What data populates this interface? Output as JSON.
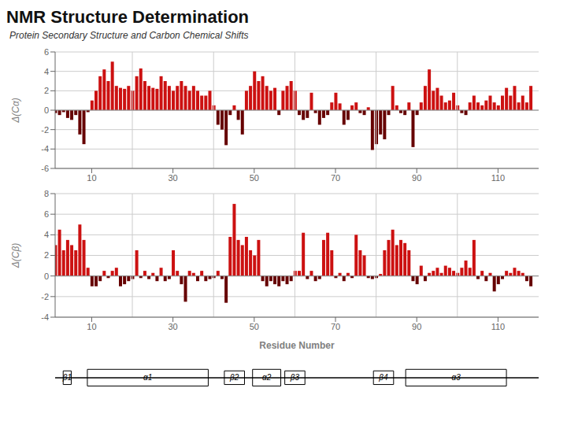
{
  "chart_data": [
    {
      "type": "bar",
      "title": "NMR Structure Determination",
      "subtitle": "Protein Secondary Structure and Carbon Chemical Shifts",
      "ylabel": "Δ(Cα)",
      "xlim": [
        1,
        120
      ],
      "xticks": [
        10,
        30,
        50,
        70,
        90,
        110
      ],
      "ylim": [
        -6,
        6
      ],
      "yticks": [
        -6,
        -4,
        -2,
        0,
        2,
        4,
        6
      ],
      "grid": true,
      "vlines": [
        20,
        40,
        60,
        80,
        100
      ],
      "x": [
        1,
        2,
        3,
        4,
        5,
        6,
        7,
        8,
        9,
        10,
        11,
        12,
        13,
        14,
        15,
        16,
        17,
        18,
        19,
        20,
        21,
        22,
        23,
        24,
        25,
        26,
        27,
        28,
        29,
        30,
        31,
        32,
        33,
        34,
        35,
        36,
        37,
        38,
        39,
        40,
        41,
        42,
        43,
        44,
        45,
        46,
        47,
        48,
        49,
        50,
        51,
        52,
        53,
        54,
        55,
        56,
        57,
        58,
        59,
        60,
        61,
        62,
        63,
        64,
        65,
        66,
        67,
        68,
        69,
        70,
        71,
        72,
        73,
        74,
        75,
        76,
        77,
        78,
        79,
        80,
        81,
        82,
        83,
        84,
        85,
        86,
        87,
        88,
        89,
        90,
        91,
        92,
        93,
        94,
        95,
        96,
        97,
        98,
        99,
        100,
        101,
        102,
        103,
        104,
        105,
        106,
        107,
        108,
        109,
        110,
        111,
        112,
        113,
        114,
        115,
        116,
        117,
        118
      ],
      "values": [
        -0.3,
        -0.5,
        -0.2,
        -0.8,
        -1.0,
        -0.5,
        -2.5,
        -3.5,
        -0.2,
        1.0,
        2.0,
        3.5,
        4.2,
        3.0,
        5.0,
        2.5,
        2.3,
        2.2,
        2.5,
        2.0,
        3.5,
        4.3,
        3.0,
        2.5,
        2.3,
        2.2,
        3.5,
        3.0,
        2.5,
        2.0,
        2.5,
        3.0,
        2.5,
        2.0,
        2.5,
        2.0,
        1.5,
        1.5,
        2.0,
        0.5,
        -1.5,
        -2.0,
        -3.6,
        -0.5,
        0.5,
        -1.0,
        -2.5,
        2.0,
        2.5,
        4.0,
        3.0,
        3.5,
        2.5,
        2.0,
        2.3,
        -0.5,
        2.0,
        2.5,
        3.0,
        2.0,
        -0.5,
        -1.0,
        -0.8,
        1.8,
        -0.3,
        -1.5,
        -0.8,
        -0.5,
        0.8,
        1.8,
        0.7,
        -1.5,
        -1.0,
        0.5,
        0.8,
        -0.3,
        -0.5,
        0.3,
        -4.1,
        -3.5,
        -2.5,
        -3.0,
        -0.5,
        2.5,
        0.5,
        -0.3,
        -0.5,
        0.8,
        -3.8,
        -0.5,
        0.8,
        2.5,
        4.2,
        2.0,
        2.3,
        1.5,
        0.8,
        1.0,
        1.8,
        0.5,
        -0.3,
        -0.5,
        0.8,
        1.5,
        0.8,
        0.5,
        1.0,
        1.5,
        0.8,
        0.5,
        1.5,
        2.3,
        1.5,
        2.5,
        0.8,
        1.5,
        0.8,
        2.5
      ],
      "colors": [
        "#660000",
        "#660000",
        "#660000",
        "#660000",
        "#660000",
        "#660000",
        "#660000",
        "#660000",
        "#660000",
        "#cc1111",
        "#cc1111",
        "#cc1111",
        "#cc1111",
        "#cc1111",
        "#cc1111",
        "#cc1111",
        "#cc1111",
        "#cc1111",
        "#cc1111",
        "#cc1111",
        "#cc1111",
        "#cc1111",
        "#cc1111",
        "#cc1111",
        "#cc1111",
        "#cc1111",
        "#cc1111",
        "#cc1111",
        "#cc1111",
        "#cc1111",
        "#cc1111",
        "#cc1111",
        "#cc1111",
        "#cc1111",
        "#cc1111",
        "#cc1111",
        "#cc1111",
        "#cc1111",
        "#cc1111",
        "#cc1111",
        "#660000",
        "#660000",
        "#660000",
        "#660000",
        "#cc1111",
        "#660000",
        "#660000",
        "#cc1111",
        "#cc1111",
        "#cc1111",
        "#cc1111",
        "#cc1111",
        "#cc1111",
        "#cc1111",
        "#cc1111",
        "#660000",
        "#cc1111",
        "#cc1111",
        "#cc1111",
        "#cc1111",
        "#660000",
        "#660000",
        "#660000",
        "#cc1111",
        "#660000",
        "#660000",
        "#660000",
        "#660000",
        "#cc1111",
        "#cc1111",
        "#cc1111",
        "#660000",
        "#660000",
        "#cc1111",
        "#cc1111",
        "#660000",
        "#660000",
        "#cc1111",
        "#660000",
        "#660000",
        "#660000",
        "#660000",
        "#660000",
        "#cc1111",
        "#cc1111",
        "#660000",
        "#660000",
        "#cc1111",
        "#660000",
        "#660000",
        "#cc1111",
        "#cc1111",
        "#cc1111",
        "#cc1111",
        "#cc1111",
        "#cc1111",
        "#cc1111",
        "#cc1111",
        "#cc1111",
        "#cc1111",
        "#660000",
        "#660000",
        "#cc1111",
        "#cc1111",
        "#cc1111",
        "#cc1111",
        "#cc1111",
        "#cc1111",
        "#cc1111",
        "#cc1111",
        "#cc1111",
        "#cc1111",
        "#cc1111",
        "#cc1111",
        "#cc1111",
        "#cc1111",
        "#cc1111",
        "#cc1111"
      ]
    },
    {
      "type": "bar",
      "ylabel": "Δ(Cβ)",
      "xlabel": "Residue Number",
      "xlim": [
        1,
        120
      ],
      "xticks": [
        10,
        30,
        50,
        70,
        90,
        110
      ],
      "ylim": [
        -4,
        8
      ],
      "yticks": [
        -4,
        -2,
        0,
        2,
        4,
        6,
        8
      ],
      "grid": true,
      "vlines": [
        20,
        40,
        60,
        80,
        100
      ],
      "x": [
        1,
        2,
        3,
        4,
        5,
        6,
        7,
        8,
        9,
        10,
        11,
        12,
        13,
        14,
        15,
        16,
        17,
        18,
        19,
        20,
        21,
        22,
        23,
        24,
        25,
        26,
        27,
        28,
        29,
        30,
        31,
        32,
        33,
        34,
        35,
        36,
        37,
        38,
        39,
        40,
        41,
        42,
        43,
        44,
        45,
        46,
        47,
        48,
        49,
        50,
        51,
        52,
        53,
        54,
        55,
        56,
        57,
        58,
        59,
        60,
        61,
        62,
        63,
        64,
        65,
        66,
        67,
        68,
        69,
        70,
        71,
        72,
        73,
        74,
        75,
        76,
        77,
        78,
        79,
        80,
        81,
        82,
        83,
        84,
        85,
        86,
        87,
        88,
        89,
        90,
        91,
        92,
        93,
        94,
        95,
        96,
        97,
        98,
        99,
        100,
        101,
        102,
        103,
        104,
        105,
        106,
        107,
        108,
        109,
        110,
        111,
        112,
        113,
        114,
        115,
        116,
        117,
        118
      ],
      "values": [
        3.0,
        4.5,
        2.5,
        3.5,
        3.0,
        2.5,
        5.0,
        3.5,
        0.8,
        -1.0,
        -1.0,
        -0.5,
        0.5,
        -0.2,
        0.5,
        0.8,
        -1.0,
        -0.8,
        -0.5,
        -0.3,
        2.5,
        -0.2,
        0.5,
        -0.3,
        0.3,
        -0.5,
        0.8,
        -0.5,
        -0.3,
        2.5,
        0.5,
        -0.8,
        -2.5,
        0.5,
        0.3,
        -0.5,
        0.5,
        -0.5,
        -0.3,
        -0.2,
        0.5,
        -0.3,
        -2.6,
        3.8,
        7.0,
        3.5,
        3.0,
        3.8,
        2.5,
        2.0,
        3.5,
        -0.5,
        -1.0,
        -0.5,
        -0.8,
        -1.0,
        -0.5,
        -0.8,
        -0.5,
        0.5,
        0.5,
        4.2,
        -0.3,
        0.5,
        -0.5,
        -0.3,
        3.5,
        4.2,
        2.5,
        -0.2,
        0.3,
        -0.5,
        0.3,
        -0.2,
        4.0,
        2.5,
        2.0,
        -0.2,
        -0.3,
        -0.2,
        0.2,
        2.5,
        3.5,
        4.5,
        3.0,
        3.5,
        3.2,
        2.5,
        -0.5,
        -0.8,
        1.0,
        -0.5,
        0.3,
        0.5,
        0.8,
        0.3,
        1.0,
        0.8,
        0.5,
        0.3,
        0.8,
        1.5,
        0.8,
        3.5,
        -0.3,
        0.5,
        -0.5,
        0.3,
        -1.5,
        -0.8,
        -0.3,
        0.5,
        0.3,
        0.8,
        0.5,
        0.3,
        -0.5,
        -1.0
      ],
      "colors": [
        "#cc1111",
        "#cc1111",
        "#cc1111",
        "#cc1111",
        "#cc1111",
        "#cc1111",
        "#cc1111",
        "#cc1111",
        "#cc1111",
        "#660000",
        "#660000",
        "#660000",
        "#cc1111",
        "#660000",
        "#cc1111",
        "#cc1111",
        "#660000",
        "#660000",
        "#660000",
        "#660000",
        "#cc1111",
        "#660000",
        "#cc1111",
        "#660000",
        "#cc1111",
        "#660000",
        "#cc1111",
        "#660000",
        "#660000",
        "#cc1111",
        "#cc1111",
        "#660000",
        "#660000",
        "#cc1111",
        "#cc1111",
        "#660000",
        "#cc1111",
        "#660000",
        "#660000",
        "#660000",
        "#cc1111",
        "#660000",
        "#660000",
        "#cc1111",
        "#cc1111",
        "#cc1111",
        "#cc1111",
        "#cc1111",
        "#cc1111",
        "#cc1111",
        "#cc1111",
        "#660000",
        "#660000",
        "#660000",
        "#660000",
        "#660000",
        "#660000",
        "#660000",
        "#660000",
        "#cc1111",
        "#cc1111",
        "#cc1111",
        "#660000",
        "#cc1111",
        "#660000",
        "#660000",
        "#cc1111",
        "#cc1111",
        "#cc1111",
        "#660000",
        "#cc1111",
        "#660000",
        "#cc1111",
        "#660000",
        "#cc1111",
        "#cc1111",
        "#cc1111",
        "#660000",
        "#660000",
        "#660000",
        "#cc1111",
        "#cc1111",
        "#cc1111",
        "#cc1111",
        "#cc1111",
        "#cc1111",
        "#cc1111",
        "#cc1111",
        "#660000",
        "#660000",
        "#cc1111",
        "#660000",
        "#cc1111",
        "#cc1111",
        "#cc1111",
        "#cc1111",
        "#cc1111",
        "#cc1111",
        "#cc1111",
        "#cc1111",
        "#cc1111",
        "#cc1111",
        "#cc1111",
        "#cc1111",
        "#660000",
        "#cc1111",
        "#660000",
        "#cc1111",
        "#660000",
        "#660000",
        "#660000",
        "#cc1111",
        "#cc1111",
        "#cc1111",
        "#cc1111",
        "#cc1111",
        "#660000",
        "#660000"
      ]
    },
    {
      "type": "segments",
      "xlim": [
        0,
        120
      ],
      "tick_labels": false,
      "strands": [
        {
          "label": "β1",
          "start": 2,
          "end": 4
        },
        {
          "label": "β2",
          "start": 42,
          "end": 47
        },
        {
          "label": "β3",
          "start": 57,
          "end": 62
        },
        {
          "label": "β4",
          "start": 79,
          "end": 84
        }
      ],
      "helices": [
        {
          "label": "α1",
          "start": 8,
          "end": 38
        },
        {
          "label": "α2",
          "start": 49,
          "end": 56
        },
        {
          "label": "α3",
          "start": 87,
          "end": 112
        }
      ]
    }
  ]
}
